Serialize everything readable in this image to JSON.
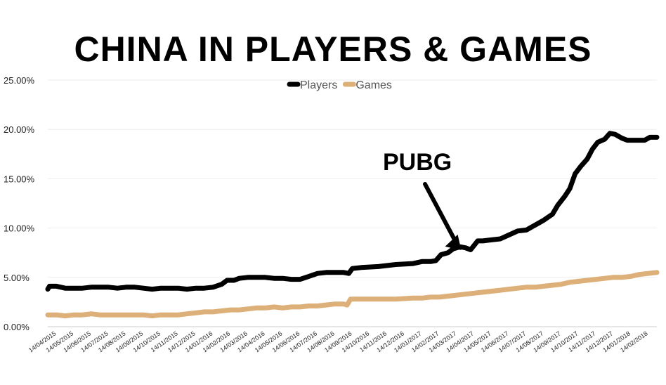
{
  "chart_data": {
    "type": "line",
    "title": "CHINA IN PLAYERS & GAMES",
    "xlabel": "",
    "ylabel": "",
    "ylim": [
      0,
      25
    ],
    "y_ticks": [
      "0.00%",
      "5.00%",
      "10.00%",
      "15.00%",
      "20.00%",
      "25.00%"
    ],
    "x_tick_labels": [
      "14/04/2015",
      "14/05/2015",
      "14/06/2015",
      "14/07/2015",
      "14/08/2015",
      "14/09/2015",
      "14/10/2015",
      "14/11/2015",
      "14/12/2015",
      "14/01/2016",
      "14/02/2016",
      "14/03/2016",
      "14/04/2016",
      "14/05/2016",
      "14/06/2016",
      "14/07/2016",
      "14/08/2016",
      "14/09/2016",
      "14/10/2016",
      "14/11/2016",
      "14/12/2016",
      "14/01/2017",
      "14/02/2017",
      "14/03/2017",
      "14/04/2017",
      "14/05/2017",
      "14/06/2017",
      "14/07/2017",
      "14/08/2017",
      "14/09/2017",
      "14/10/2017",
      "14/11/2017",
      "14/12/2017",
      "14/01/2018",
      "14/02/2018"
    ],
    "grid": true,
    "legend_position": "top-center",
    "series": [
      {
        "name": "Players",
        "color": "#000000",
        "points": [
          [
            0,
            3.8
          ],
          [
            0.1,
            4.1
          ],
          [
            0.5,
            4.1
          ],
          [
            1,
            3.9
          ],
          [
            1.5,
            3.9
          ],
          [
            2,
            3.9
          ],
          [
            2.5,
            4.0
          ],
          [
            3,
            4.0
          ],
          [
            3.5,
            4.0
          ],
          [
            4,
            3.9
          ],
          [
            4.5,
            4.0
          ],
          [
            5,
            4.0
          ],
          [
            5.5,
            3.9
          ],
          [
            6,
            3.8
          ],
          [
            6.5,
            3.9
          ],
          [
            7,
            3.9
          ],
          [
            7.5,
            3.9
          ],
          [
            8,
            3.8
          ],
          [
            8.5,
            3.9
          ],
          [
            9,
            3.9
          ],
          [
            9.5,
            4.0
          ],
          [
            10,
            4.3
          ],
          [
            10.3,
            4.7
          ],
          [
            10.7,
            4.7
          ],
          [
            11,
            4.9
          ],
          [
            11.5,
            5.0
          ],
          [
            12,
            5.0
          ],
          [
            12.5,
            5.0
          ],
          [
            13,
            4.9
          ],
          [
            13.5,
            4.9
          ],
          [
            14,
            4.8
          ],
          [
            14.5,
            4.8
          ],
          [
            15,
            5.1
          ],
          [
            15.5,
            5.4
          ],
          [
            16,
            5.5
          ],
          [
            16.5,
            5.5
          ],
          [
            17,
            5.5
          ],
          [
            17.3,
            5.4
          ],
          [
            17.5,
            5.9
          ],
          [
            18,
            6.0
          ],
          [
            19,
            6.1
          ],
          [
            20,
            6.3
          ],
          [
            21,
            6.4
          ],
          [
            21.5,
            6.6
          ],
          [
            22,
            6.6
          ],
          [
            22.3,
            6.7
          ],
          [
            22.6,
            7.3
          ],
          [
            23,
            7.5
          ],
          [
            23.3,
            7.9
          ],
          [
            23.7,
            8.1
          ],
          [
            24,
            8.0
          ],
          [
            24.3,
            7.8
          ],
          [
            24.7,
            8.7
          ],
          [
            25,
            8.7
          ],
          [
            25.5,
            8.8
          ],
          [
            26,
            8.9
          ],
          [
            26.5,
            9.3
          ],
          [
            27,
            9.7
          ],
          [
            27.5,
            9.8
          ],
          [
            28,
            10.3
          ],
          [
            28.5,
            10.8
          ],
          [
            29,
            11.4
          ],
          [
            29.3,
            12.3
          ],
          [
            29.7,
            13.2
          ],
          [
            30,
            14.0
          ],
          [
            30.3,
            15.5
          ],
          [
            30.6,
            16.2
          ],
          [
            31,
            17.0
          ],
          [
            31.3,
            18.0
          ],
          [
            31.6,
            18.7
          ],
          [
            32,
            19.0
          ],
          [
            32.3,
            19.6
          ],
          [
            32.6,
            19.5
          ],
          [
            33,
            19.1
          ],
          [
            33.3,
            18.9
          ],
          [
            33.6,
            18.9
          ],
          [
            34,
            18.9
          ],
          [
            34.3,
            18.9
          ],
          [
            34.6,
            19.2
          ],
          [
            35,
            19.2
          ]
        ]
      },
      {
        "name": "Games",
        "color": "#ddb07a",
        "points": [
          [
            0,
            1.2
          ],
          [
            0.5,
            1.2
          ],
          [
            1,
            1.1
          ],
          [
            1.5,
            1.2
          ],
          [
            2,
            1.2
          ],
          [
            2.5,
            1.3
          ],
          [
            3,
            1.2
          ],
          [
            3.5,
            1.2
          ],
          [
            4,
            1.2
          ],
          [
            4.5,
            1.2
          ],
          [
            5,
            1.2
          ],
          [
            5.5,
            1.2
          ],
          [
            6,
            1.1
          ],
          [
            6.5,
            1.2
          ],
          [
            7,
            1.2
          ],
          [
            7.5,
            1.2
          ],
          [
            8,
            1.3
          ],
          [
            8.5,
            1.4
          ],
          [
            9,
            1.5
          ],
          [
            9.5,
            1.5
          ],
          [
            10,
            1.6
          ],
          [
            10.5,
            1.7
          ],
          [
            11,
            1.7
          ],
          [
            11.5,
            1.8
          ],
          [
            12,
            1.9
          ],
          [
            12.5,
            1.9
          ],
          [
            13,
            2.0
          ],
          [
            13.5,
            1.9
          ],
          [
            14,
            2.0
          ],
          [
            14.5,
            2.0
          ],
          [
            15,
            2.1
          ],
          [
            15.5,
            2.1
          ],
          [
            16,
            2.2
          ],
          [
            16.5,
            2.3
          ],
          [
            17,
            2.3
          ],
          [
            17.2,
            2.2
          ],
          [
            17.4,
            2.8
          ],
          [
            18,
            2.8
          ],
          [
            19,
            2.8
          ],
          [
            20,
            2.8
          ],
          [
            21,
            2.9
          ],
          [
            21.5,
            2.9
          ],
          [
            22,
            3.0
          ],
          [
            22.5,
            3.0
          ],
          [
            23,
            3.1
          ],
          [
            23.5,
            3.2
          ],
          [
            24,
            3.3
          ],
          [
            24.5,
            3.4
          ],
          [
            25,
            3.5
          ],
          [
            25.5,
            3.6
          ],
          [
            26,
            3.7
          ],
          [
            26.5,
            3.8
          ],
          [
            27,
            3.9
          ],
          [
            27.5,
            4.0
          ],
          [
            28,
            4.0
          ],
          [
            28.5,
            4.1
          ],
          [
            29,
            4.2
          ],
          [
            29.5,
            4.3
          ],
          [
            30,
            4.5
          ],
          [
            30.5,
            4.6
          ],
          [
            31,
            4.7
          ],
          [
            31.5,
            4.8
          ],
          [
            32,
            4.9
          ],
          [
            32.5,
            5.0
          ],
          [
            33,
            5.0
          ],
          [
            33.5,
            5.1
          ],
          [
            34,
            5.3
          ],
          [
            34.5,
            5.4
          ],
          [
            35,
            5.5
          ]
        ]
      }
    ],
    "annotations": [
      {
        "text": "PUBG",
        "x_index": 24.0,
        "y": 8.2
      }
    ]
  }
}
